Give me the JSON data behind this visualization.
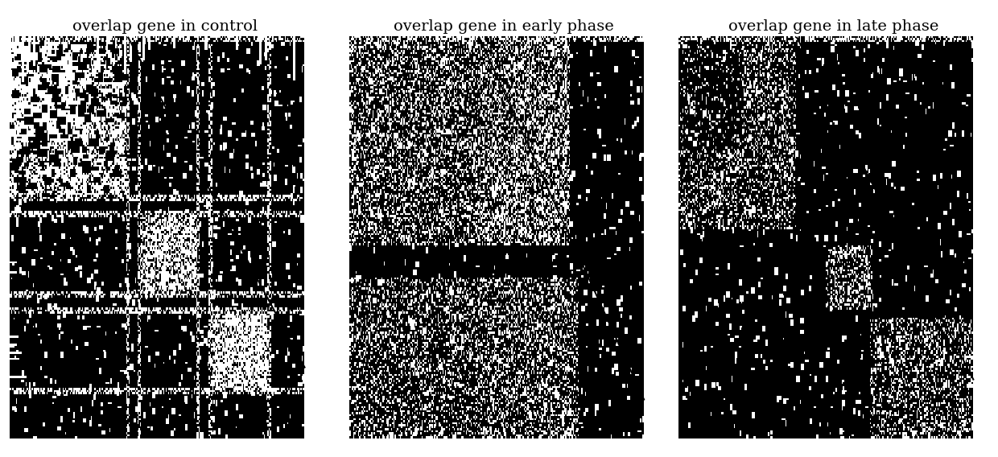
{
  "titles": [
    "overlap gene in control",
    "overlap gene in early phase",
    "overlap gene in late phase"
  ],
  "title_fontsize": 14,
  "background_color": "#ffffff",
  "text_color": "#000000",
  "seed": 42,
  "matrix_rows": 200,
  "matrix_cols": 240
}
